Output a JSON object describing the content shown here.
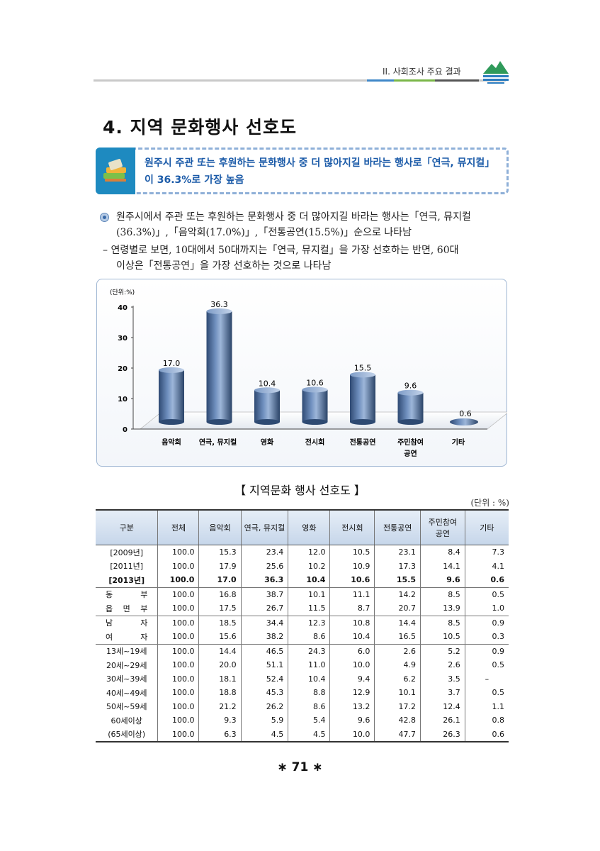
{
  "header": {
    "section": "II. 사회조사 주요 결과"
  },
  "title": "4. 지역 문화행사 선호도",
  "summary": "원주시 주관 또는 후원하는 문화행사 중 더 많아지길 바라는 행사로「연극, 뮤지컬」이 36.3%로 가장 높음",
  "bullet1_line1": "원주시에서 주관 또는 후원하는 문화행사 중 더 많아지길 바라는 행사는「연극, 뮤지컬",
  "bullet1_line2": "(36.3%)」,「음악회(17.0%)」,「전통공연(15.5%)」순으로 나타남",
  "bullet2_line1": "– 연령별로 보면, 10대에서 50대까지는「연극, 뮤지컬」을 가장 선호하는 반면, 60대",
  "bullet2_line2": "이상은「전통공연」을 가장 선호하는 것으로 나타남",
  "chart_data": {
    "type": "bar",
    "unit_label": "(단위:%)",
    "categories": [
      "음악회",
      "연극, 뮤지컬",
      "영화",
      "전시회",
      "전통공연",
      "주민참여 공연",
      "기타"
    ],
    "values": [
      17.0,
      36.3,
      10.4,
      10.6,
      15.5,
      9.6,
      0.6
    ],
    "value_labels": [
      "17.0",
      "36.3",
      "10.4",
      "10.6",
      "15.5",
      "9.6",
      "0.6"
    ],
    "yticks": [
      "40",
      "30",
      "20",
      "10",
      "0"
    ],
    "ylim": [
      0,
      40
    ],
    "grid": false,
    "color": "#5b7fb0"
  },
  "table_title": "【 지역문화 행사 선호도 】",
  "table_unit": "(단위 : %)",
  "table": {
    "headers": [
      "구분",
      "전체",
      "음악회",
      "연극, 뮤지컬",
      "영화",
      "전시회",
      "전통공연",
      "주민참여 공연",
      "기타"
    ],
    "rows": [
      [
        "[2009년]",
        "100.0",
        "15.3",
        "23.4",
        "12.0",
        "10.5",
        "23.1",
        "8.4",
        "7.3"
      ],
      [
        "[2011년]",
        "100.0",
        "17.9",
        "25.6",
        "10.2",
        "10.9",
        "17.3",
        "14.1",
        "4.1"
      ],
      [
        "[2013년]",
        "100.0",
        "17.0",
        "36.3",
        "10.4",
        "10.6",
        "15.5",
        "9.6",
        "0.6"
      ],
      [
        "동 부",
        "100.0",
        "16.8",
        "38.7",
        "10.1",
        "11.1",
        "14.2",
        "8.5",
        "0.5"
      ],
      [
        "읍 면 부",
        "100.0",
        "17.5",
        "26.7",
        "11.5",
        "8.7",
        "20.7",
        "13.9",
        "1.0"
      ],
      [
        "남 자",
        "100.0",
        "18.5",
        "34.4",
        "12.3",
        "10.8",
        "14.4",
        "8.5",
        "0.9"
      ],
      [
        "여 자",
        "100.0",
        "15.6",
        "38.2",
        "8.6",
        "10.4",
        "16.5",
        "10.5",
        "0.3"
      ],
      [
        "13세~19세",
        "100.0",
        "14.4",
        "46.5",
        "24.3",
        "6.0",
        "2.6",
        "5.2",
        "0.9"
      ],
      [
        "20세~29세",
        "100.0",
        "20.0",
        "51.1",
        "11.0",
        "10.0",
        "4.9",
        "2.6",
        "0.5"
      ],
      [
        "30세~39세",
        "100.0",
        "18.1",
        "52.4",
        "10.4",
        "9.4",
        "6.2",
        "3.5",
        "–"
      ],
      [
        "40세~49세",
        "100.0",
        "18.8",
        "45.3",
        "8.8",
        "12.9",
        "10.1",
        "3.7",
        "0.5"
      ],
      [
        "50세~59세",
        "100.0",
        "21.2",
        "26.2",
        "8.6",
        "13.2",
        "17.2",
        "12.4",
        "1.1"
      ],
      [
        "60세이상",
        "100.0",
        "9.3",
        "5.9",
        "5.4",
        "9.6",
        "42.8",
        "26.1",
        "0.8"
      ],
      [
        "(65세이상)",
        "100.0",
        "6.3",
        "4.5",
        "4.5",
        "10.0",
        "47.7",
        "26.3",
        "0.6"
      ]
    ]
  },
  "page_number": "∗ 71 ∗"
}
